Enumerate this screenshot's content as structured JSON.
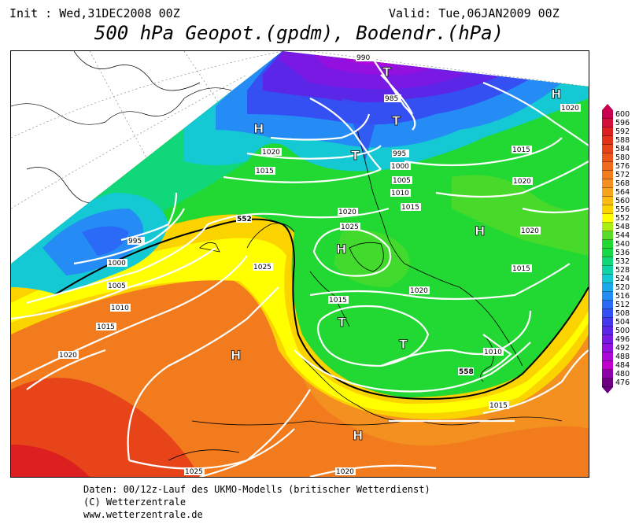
{
  "header": {
    "init": "Init : Wed,31DEC2008 00Z",
    "valid": "Valid: Tue,06JAN2009 00Z",
    "title": "500 hPa Geopot.(gpdm), Bodendr.(hPa)"
  },
  "footer": {
    "line1": "Daten: 00/12z-Lauf des UKMO-Modells (britischer Wetterdienst)",
    "line2": "(C) Wetterzentrale",
    "line3": "www.wetterzentrale.de"
  },
  "pressure_centers": [
    {
      "label": "H",
      "region": "north-atlantic-greenland"
    },
    {
      "label": "T",
      "region": "norwegian-sea"
    },
    {
      "label": "T",
      "region": "norway-coast"
    },
    {
      "label": "T",
      "region": "scandinavia"
    },
    {
      "label": "H",
      "region": "far-northeast"
    },
    {
      "label": "H",
      "region": "north-sea"
    },
    {
      "label": "H",
      "region": "russia"
    },
    {
      "label": "T",
      "region": "france"
    },
    {
      "label": "T",
      "region": "italy"
    },
    {
      "label": "H",
      "region": "azores"
    },
    {
      "label": "H",
      "region": "north-africa"
    }
  ],
  "isobar_labels": [
    "990",
    "985",
    "995",
    "1000",
    "1005",
    "1010",
    "1015",
    "1020",
    "1015",
    "1020",
    "1025",
    "1020",
    "1015",
    "1020",
    "1015",
    "1010",
    "1020",
    "1015",
    "1025",
    "995",
    "1000",
    "1005",
    "1010",
    "1015",
    "1020",
    "1020",
    "1015",
    "1010",
    "1025",
    "1025",
    "1020"
  ],
  "contour_labels": [
    "552",
    "558"
  ],
  "colorbar": {
    "unit": "gpdm",
    "levels": [
      {
        "value": "600",
        "color": "#c80050"
      },
      {
        "value": "596",
        "color": "#d40e3a"
      },
      {
        "value": "592",
        "color": "#dc2020"
      },
      {
        "value": "588",
        "color": "#e33217"
      },
      {
        "value": "584",
        "color": "#e8441a"
      },
      {
        "value": "580",
        "color": "#ec561c"
      },
      {
        "value": "576",
        "color": "#ef6a1c"
      },
      {
        "value": "572",
        "color": "#f17d1c"
      },
      {
        "value": "568",
        "color": "#f39020"
      },
      {
        "value": "564",
        "color": "#f6a41c"
      },
      {
        "value": "560",
        "color": "#f9ba12"
      },
      {
        "value": "556",
        "color": "#fbd400"
      },
      {
        "value": "552",
        "color": "#ffff00"
      },
      {
        "value": "548",
        "color": "#a8ee10"
      },
      {
        "value": "544",
        "color": "#58dc28"
      },
      {
        "value": "540",
        "color": "#22d832"
      },
      {
        "value": "536",
        "color": "#14d848"
      },
      {
        "value": "532",
        "color": "#10d87a"
      },
      {
        "value": "528",
        "color": "#10d4a8"
      },
      {
        "value": "524",
        "color": "#14c8d4"
      },
      {
        "value": "520",
        "color": "#1ca8ec"
      },
      {
        "value": "516",
        "color": "#248cf4"
      },
      {
        "value": "512",
        "color": "#2a6af6"
      },
      {
        "value": "508",
        "color": "#3450f2"
      },
      {
        "value": "504",
        "color": "#4636ec"
      },
      {
        "value": "500",
        "color": "#5c26e8"
      },
      {
        "value": "496",
        "color": "#7a18e4"
      },
      {
        "value": "492",
        "color": "#9410de"
      },
      {
        "value": "488",
        "color": "#ac08d8"
      },
      {
        "value": "484",
        "color": "#c000cc"
      },
      {
        "value": "480",
        "color": "#8e00a8"
      },
      {
        "value": "476",
        "color": "#6c0080"
      }
    ]
  }
}
